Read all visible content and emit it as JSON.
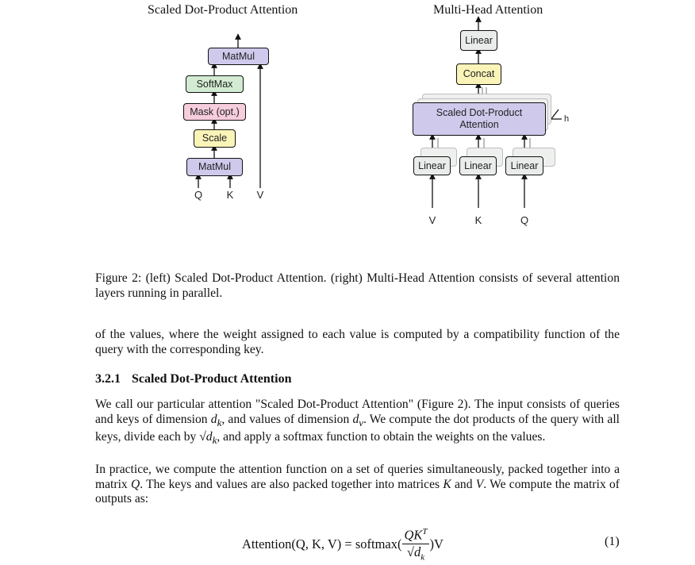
{
  "figure": {
    "left_title": "Scaled Dot-Product Attention",
    "right_title": "Multi-Head Attention",
    "left_diagram": {
      "matmul_top": "MatMul",
      "softmax": "SoftMax",
      "mask": "Mask (opt.)",
      "scale": "Scale",
      "matmul_bottom": "MatMul",
      "inputs": [
        "Q",
        "K",
        "V"
      ]
    },
    "right_diagram": {
      "linear_top": "Linear",
      "concat": "Concat",
      "attention_line1": "Scaled Dot-Product",
      "attention_line2": "Attention",
      "heads_label": "h",
      "linears": [
        "Linear",
        "Linear",
        "Linear"
      ],
      "inputs": [
        "V",
        "K",
        "Q"
      ]
    },
    "caption": "Figure 2: (left) Scaled Dot-Product Attention. (right) Multi-Head Attention consists of several attention layers running in parallel.",
    "colors": {
      "matmul": "#cfc9ec",
      "softmax": "#d3ebd2",
      "mask": "#f6cddd",
      "scale": "#fbf4b8",
      "concat": "#fbf4b8",
      "linear": "#e9ecea",
      "attention": "#cfc9ec"
    }
  },
  "text": {
    "para_continuation": "of the values, where the weight assigned to each value is computed by a compatibility function of the query with the corresponding key.",
    "subsection_number": "3.2.1",
    "subsection_title": "Scaled Dot-Product Attention",
    "para2": {
      "s1": "We call our particular attention \"Scaled Dot-Product Attention\" (Figure 2). The input consists of queries and keys of dimension ",
      "dk": "d",
      "dk_sub": "k",
      "s2": ", and values of dimension ",
      "dv": "d",
      "dv_sub": "v",
      "s3": ". We compute the dot products of the query with all keys, divide each by ",
      "sqrt_dk": "√d",
      "sqrt_dk_sub": "k",
      "s4": ", and apply a softmax function to obtain the weights on the values."
    },
    "para3": {
      "s1": "In practice, we compute the attention function on a set of queries simultaneously, packed together into a matrix ",
      "Q": "Q",
      "s2": ". The keys and values are also packed together into matrices ",
      "K": "K",
      "s3": " and ",
      "V": "V",
      "s4": ". We compute the matrix of outputs as:"
    },
    "equation": {
      "lhs": "Attention(Q, K, V) = softmax(",
      "numerator": "QK",
      "numerator_sup": "T",
      "denominator": "√d",
      "denominator_sub": "k",
      "rhs": ")V",
      "number": "(1)"
    }
  }
}
